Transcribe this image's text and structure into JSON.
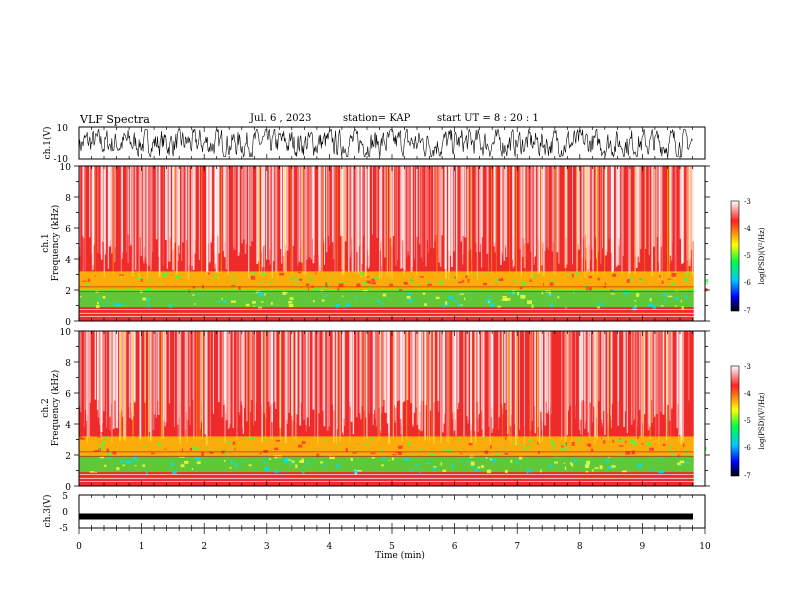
{
  "header": {
    "title": "VLF Spectra",
    "date": "Jul. 6 , 2023",
    "station": "station= KAP",
    "start_ut": "start UT = 8 : 20 : 1"
  },
  "colors": {
    "waveform": "#000000",
    "spectrogram_base": "#f02020",
    "colormap": [
      "#ffffff",
      "#ff2020",
      "#ffff00",
      "#00ff40",
      "#00c8ff",
      "#0000ff",
      "#000000"
    ]
  },
  "chart_data": [
    {
      "type": "line",
      "panel": "ch1-waveform",
      "ylabel": "ch.1(V)",
      "ylim": [
        -10,
        10
      ],
      "ytick_labels": [
        "10",
        "-10"
      ],
      "xlim": [
        0,
        10
      ],
      "description_of_signal": "noise-like waveform spanning roughly ±8 V"
    },
    {
      "type": "heatmap",
      "panel": "ch1-spectrogram",
      "ylabel": "ch.1\nFrequency (kHz)",
      "ylim": [
        0,
        10
      ],
      "ytick_labels": [
        "0",
        "2",
        "4",
        "6",
        "8",
        "10"
      ],
      "xlim": [
        0,
        10
      ],
      "colorbar": {
        "label": "log(PSD)(V²/Hz)",
        "range": [
          -7,
          -3
        ],
        "tick_labels": [
          "-3",
          "-4",
          "-5",
          "-6",
          "-7"
        ]
      }
    },
    {
      "type": "heatmap",
      "panel": "ch2-spectrogram",
      "ylabel": "ch.2\nFrequency (kHz)",
      "ylim": [
        0,
        10
      ],
      "ytick_labels": [
        "0",
        "2",
        "4",
        "6",
        "8",
        "10"
      ],
      "xlim": [
        0,
        10
      ],
      "colorbar": {
        "label": "log(PSD)(V²/Hz)",
        "range": [
          -7,
          -3
        ],
        "tick_labels": [
          "-3",
          "-4",
          "-5",
          "-6",
          "-7"
        ]
      }
    },
    {
      "type": "line",
      "panel": "ch3-waveform",
      "ylabel": "ch.3(V)",
      "ylim": [
        -5,
        5
      ],
      "ytick_labels": [
        "5",
        "0",
        "-5"
      ],
      "xlim": [
        0,
        10
      ],
      "constant_level": -1.5
    }
  ],
  "xaxis": {
    "label": "Time (min)",
    "tick_labels": [
      "0",
      "1",
      "2",
      "3",
      "4",
      "5",
      "6",
      "7",
      "8",
      "9",
      "10"
    ]
  }
}
